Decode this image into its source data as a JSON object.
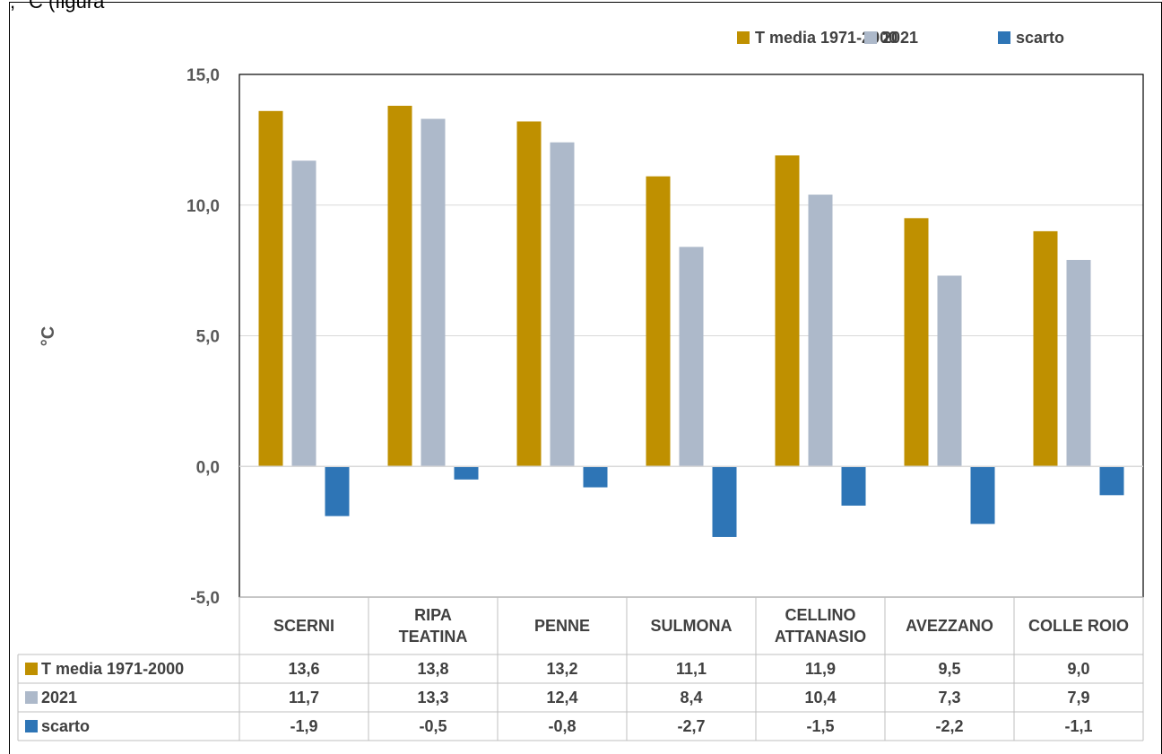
{
  "header_fragment": ", °C (figura",
  "chart_data": {
    "type": "bar",
    "ylabel": "°C",
    "ylim": [
      -5,
      15
    ],
    "yticks": [
      "15,0",
      "10,0",
      "5,0",
      "0,0",
      "-5,0"
    ],
    "ytick_values": [
      15,
      10,
      5,
      0,
      -5
    ],
    "categories": [
      [
        "SCERNI"
      ],
      [
        "RIPA",
        "TEATINA"
      ],
      [
        "PENNE"
      ],
      [
        "SULMONA"
      ],
      [
        "CELLINO",
        "ATTANASIO"
      ],
      [
        "AVEZZANO"
      ],
      [
        "COLLE ROIO"
      ]
    ],
    "series": [
      {
        "name": "T media 1971-2000",
        "color": "#BF9000",
        "values": [
          13.6,
          13.8,
          13.2,
          11.1,
          11.9,
          9.5,
          9.0
        ],
        "labels": [
          "13,6",
          "13,8",
          "13,2",
          "11,1",
          "11,9",
          "9,5",
          "9,0"
        ]
      },
      {
        "name": "2021",
        "color": "#ADB9CA",
        "values": [
          11.7,
          13.3,
          12.4,
          8.4,
          10.4,
          7.3,
          7.9
        ],
        "labels": [
          "11,7",
          "13,3",
          "12,4",
          "8,4",
          "10,4",
          "7,3",
          "7,9"
        ]
      },
      {
        "name": "scarto",
        "color": "#2E75B6",
        "values": [
          -1.9,
          -0.5,
          -0.8,
          -2.7,
          -1.5,
          -2.2,
          -1.1
        ],
        "labels": [
          "-1,9",
          "-0,5",
          "-0,8",
          "-2,7",
          "-1,5",
          "-2,2",
          "-1,1"
        ]
      }
    ],
    "legend": "top-right",
    "grid": true,
    "data_table": true
  }
}
